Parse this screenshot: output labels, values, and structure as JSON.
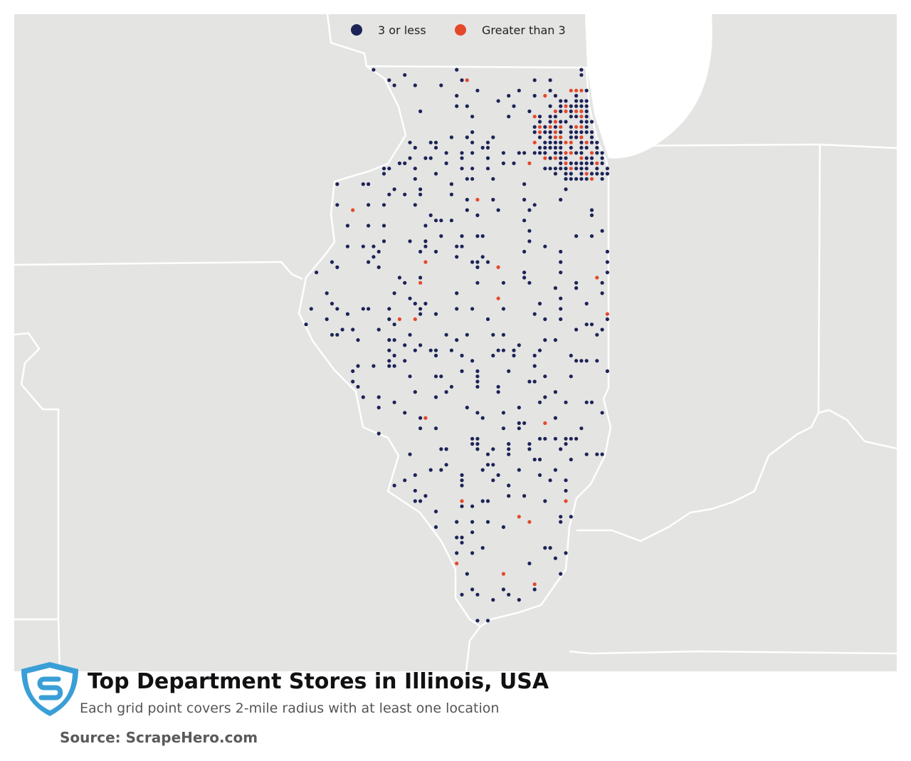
{
  "legend": {
    "items": [
      {
        "label": "3 or less",
        "color": "#1c2357"
      },
      {
        "label": "Greater than 3",
        "color": "#e4492a"
      }
    ]
  },
  "title": "Top Department Stores in Illinois, USA",
  "subtitle": "Each grid point covers 2-mile radius with at least one location",
  "source": "Source: ScrapeHero.com"
}
